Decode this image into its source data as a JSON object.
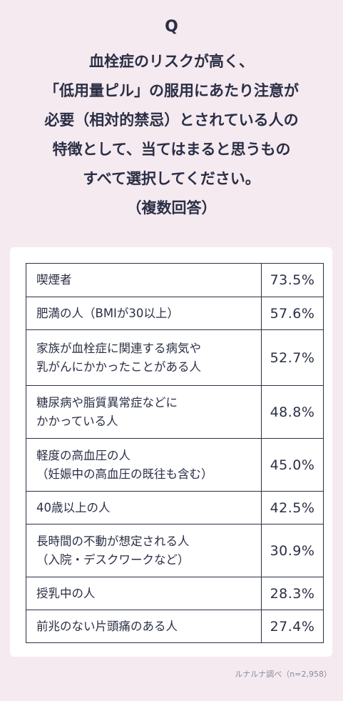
{
  "question": {
    "mark": "Q",
    "lines": [
      "血栓症のリスクが高く、",
      "「低用量ピル」の服用にあたり注意が",
      "必要（相対的禁忌）とされている人の",
      "特徴として、当てはまると思うもの",
      "すべて選択してください。",
      "（複数回答）"
    ]
  },
  "chart_data": {
    "type": "table",
    "rows": [
      {
        "label": [
          "喫煙者"
        ],
        "value": "73.5%"
      },
      {
        "label": [
          "肥満の人（BMIが30以上）"
        ],
        "value": "57.6%"
      },
      {
        "label": [
          "家族が血栓症に関連する病気や",
          "乳がんにかかったことがある人"
        ],
        "value": "52.7%"
      },
      {
        "label": [
          "糖尿病や脂質異常症などに",
          "かかっている人"
        ],
        "value": "48.8%"
      },
      {
        "label": [
          "軽度の高血圧の人",
          "（妊娠中の高血圧の既往も含む）"
        ],
        "value": "45.0%"
      },
      {
        "label": [
          "40歳以上の人"
        ],
        "value": "42.5%"
      },
      {
        "label": [
          "長時間の不動が想定される人",
          "（入院・デスクワークなど）"
        ],
        "value": "30.9%"
      },
      {
        "label": [
          "授乳中の人"
        ],
        "value": "28.3%"
      },
      {
        "label": [
          "前兆のない片頭痛のある人"
        ],
        "value": "27.4%"
      }
    ]
  },
  "source": "ルナルナ調べ（n=2,958）"
}
